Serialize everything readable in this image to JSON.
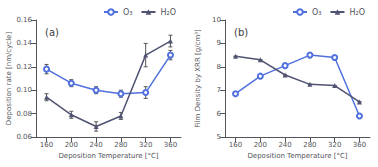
{
  "chart_data": [
    {
      "type": "line",
      "title": "(a)",
      "xlabel": "Deposition Temperature [°C]",
      "ylabel": "Deposition rate [nm/cycle]",
      "x": [
        160,
        200,
        240,
        280,
        320,
        360
      ],
      "xlim": [
        143,
        377
      ],
      "xticks": [
        160,
        200,
        240,
        280,
        320,
        360
      ],
      "ylim": [
        0.06,
        0.16
      ],
      "yticks": [
        0.06,
        0.08,
        {
          "value": 0.1,
          "label": "0.10"
        },
        0.12,
        0.14,
        0.16
      ],
      "grid": false,
      "legend": "upper right",
      "series": [
        {
          "name": "O₃",
          "marker": "circle",
          "values": [
            0.118,
            0.106,
            0.1,
            0.097,
            0.098,
            0.13
          ],
          "yerr": [
            0.004,
            0.003,
            0.003,
            0.003,
            0.005,
            0.004
          ]
        },
        {
          "name": "H₂O",
          "marker": "triangle",
          "values": [
            0.094,
            0.079,
            0.069,
            0.078,
            0.13,
            0.142
          ],
          "yerr": [
            0.003,
            0.003,
            0.004,
            0.003,
            0.01,
            0.005
          ]
        }
      ]
    },
    {
      "type": "line",
      "title": "(b)",
      "xlabel": "Deposition Temperature [°C]",
      "ylabel": "Film Density by XRR [g/cm³]",
      "x": [
        160,
        200,
        240,
        280,
        320,
        360
      ],
      "xlim": [
        143,
        377
      ],
      "xticks": [
        160,
        200,
        240,
        280,
        320,
        360
      ],
      "ylim": [
        5,
        10
      ],
      "yticks": [
        5,
        6,
        7,
        8,
        9,
        10
      ],
      "grid": false,
      "legend": "upper right",
      "series": [
        {
          "name": "O₃",
          "marker": "circle",
          "values": [
            6.85,
            7.6,
            8.05,
            8.5,
            8.4,
            5.9
          ],
          "yerr": [
            0,
            0,
            0,
            0,
            0,
            0
          ]
        },
        {
          "name": "H₂O",
          "marker": "triangle",
          "values": [
            8.45,
            8.3,
            7.65,
            7.25,
            7.2,
            6.5
          ],
          "yerr": [
            0,
            0,
            0,
            0,
            0,
            0
          ]
        }
      ]
    }
  ]
}
